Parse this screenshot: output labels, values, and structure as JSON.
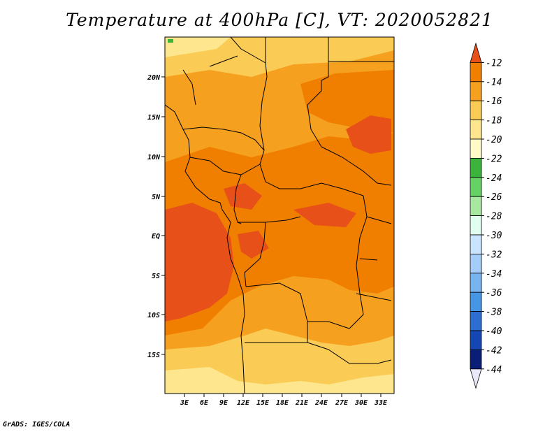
{
  "title": "Temperature at 400hPa [C], VT: 2020052821",
  "credit": "GrADS: IGES/COLA",
  "map": {
    "lat_labels": [
      "20N",
      "15N",
      "10N",
      "5N",
      "EQ",
      "5S",
      "10S",
      "15S"
    ],
    "lon_labels": [
      "3E",
      "6E",
      "9E",
      "12E",
      "15E",
      "18E",
      "21E",
      "24E",
      "27E",
      "30E",
      "33E"
    ]
  },
  "colorbar": {
    "labels": [
      "-12",
      "-14",
      "-16",
      "-18",
      "-20",
      "-22",
      "-24",
      "-26",
      "-28",
      "-30",
      "-32",
      "-34",
      "-36",
      "-38",
      "-40",
      "-42",
      "-44"
    ],
    "colors": [
      "#e8501a",
      "#f07f00",
      "#f6a020",
      "#fbcc55",
      "#fde68e",
      "#fffac8",
      "#3cb43c",
      "#64d264",
      "#a8e8a0",
      "#e1fff0",
      "#c8e4ff",
      "#a5cdfa",
      "#78b4f0",
      "#4696e6",
      "#2d6ed2",
      "#1446b4",
      "#0a1e78",
      "#e8e8f8"
    ]
  }
}
